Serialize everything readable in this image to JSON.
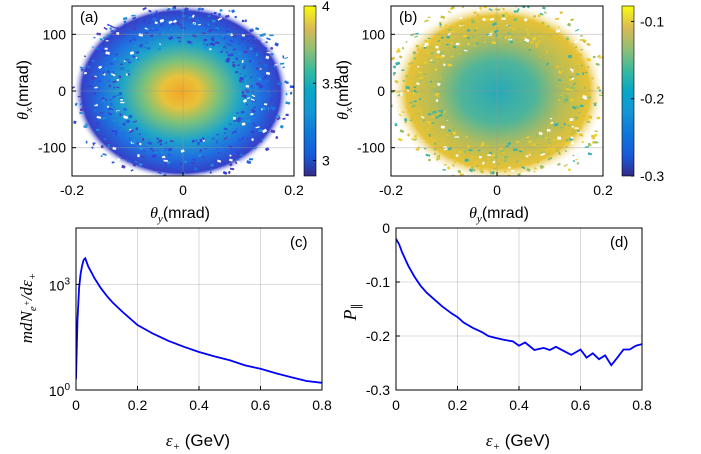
{
  "chart_data": [
    {
      "type": "heatmap",
      "panel_label": "(a)",
      "xlabel": "θy(mrad)",
      "ylabel": "θx(mrad)",
      "xlim": [
        -0.2,
        0.2
      ],
      "ylim": [
        -150,
        150
      ],
      "xticks": [
        "-0.2",
        "0",
        "0.2"
      ],
      "yticks": [
        "100",
        "0",
        "-100"
      ],
      "colorbar": {
        "min": 2.9,
        "max": 4.0,
        "ticks": [
          "4",
          "3.5",
          "3"
        ],
        "colormap": "parula"
      },
      "grid": true
    },
    {
      "type": "heatmap",
      "panel_label": "(b)",
      "xlabel": "θy(mrad)",
      "ylabel": "θx(mrad)",
      "xlim": [
        -0.2,
        0.2
      ],
      "ylim": [
        -150,
        150
      ],
      "xticks": [
        "-0.2",
        "0",
        "0.2"
      ],
      "yticks": [
        "100",
        "0",
        "-100"
      ],
      "colorbar": {
        "min": -0.3,
        "max": -0.08,
        "ticks": [
          "-0.1",
          "-0.2",
          "-0.3"
        ],
        "colormap": "parula"
      },
      "grid": true
    },
    {
      "type": "line",
      "panel_label": "(c)",
      "xlabel": "ε+ (GeV)",
      "ylabel": "mdNe+/dε+",
      "yscale": "log",
      "xlim": [
        0,
        0.8
      ],
      "ylim": [
        1,
        40000
      ],
      "xticks": [
        "0",
        "0.2",
        "0.4",
        "0.6",
        "0.8"
      ],
      "yticks": [
        "10^3",
        "10^0"
      ],
      "grid": true,
      "color": "#0000ff",
      "x": [
        0.0,
        0.002,
        0.005,
        0.01,
        0.015,
        0.02,
        0.025,
        0.03,
        0.035,
        0.04,
        0.05,
        0.06,
        0.08,
        0.1,
        0.12,
        0.15,
        0.2,
        0.25,
        0.3,
        0.35,
        0.4,
        0.45,
        0.5,
        0.55,
        0.6,
        0.65,
        0.7,
        0.75,
        0.8
      ],
      "y": [
        2,
        10,
        100,
        800,
        2000,
        3500,
        5000,
        5500,
        4200,
        3200,
        2200,
        1500,
        800,
        470,
        300,
        170,
        70,
        40,
        25,
        17,
        12,
        9,
        7,
        5,
        4,
        3,
        2.3,
        1.8,
        1.6
      ]
    },
    {
      "type": "line",
      "panel_label": "(d)",
      "xlabel": "ε+ (GeV)",
      "ylabel": "P∥",
      "xlim": [
        0,
        0.8
      ],
      "ylim": [
        -0.3,
        0
      ],
      "xticks": [
        "0",
        "0.2",
        "0.4",
        "0.6",
        "0.8"
      ],
      "yticks": [
        "0",
        "-0.1",
        "-0.2",
        "-0.3"
      ],
      "grid": true,
      "color": "#0000ff",
      "x": [
        0.0,
        0.01,
        0.02,
        0.04,
        0.06,
        0.08,
        0.1,
        0.12,
        0.15,
        0.18,
        0.2,
        0.22,
        0.25,
        0.28,
        0.3,
        0.32,
        0.35,
        0.38,
        0.4,
        0.42,
        0.45,
        0.48,
        0.5,
        0.52,
        0.55,
        0.57,
        0.6,
        0.62,
        0.64,
        0.66,
        0.68,
        0.7,
        0.72,
        0.74,
        0.76,
        0.78,
        0.8
      ],
      "y": [
        -0.02,
        -0.03,
        -0.045,
        -0.07,
        -0.09,
        -0.107,
        -0.12,
        -0.13,
        -0.145,
        -0.158,
        -0.165,
        -0.175,
        -0.185,
        -0.193,
        -0.2,
        -0.203,
        -0.207,
        -0.21,
        -0.218,
        -0.212,
        -0.226,
        -0.222,
        -0.226,
        -0.22,
        -0.229,
        -0.235,
        -0.225,
        -0.24,
        -0.232,
        -0.243,
        -0.236,
        -0.254,
        -0.24,
        -0.225,
        -0.225,
        -0.218,
        -0.215
      ]
    }
  ]
}
